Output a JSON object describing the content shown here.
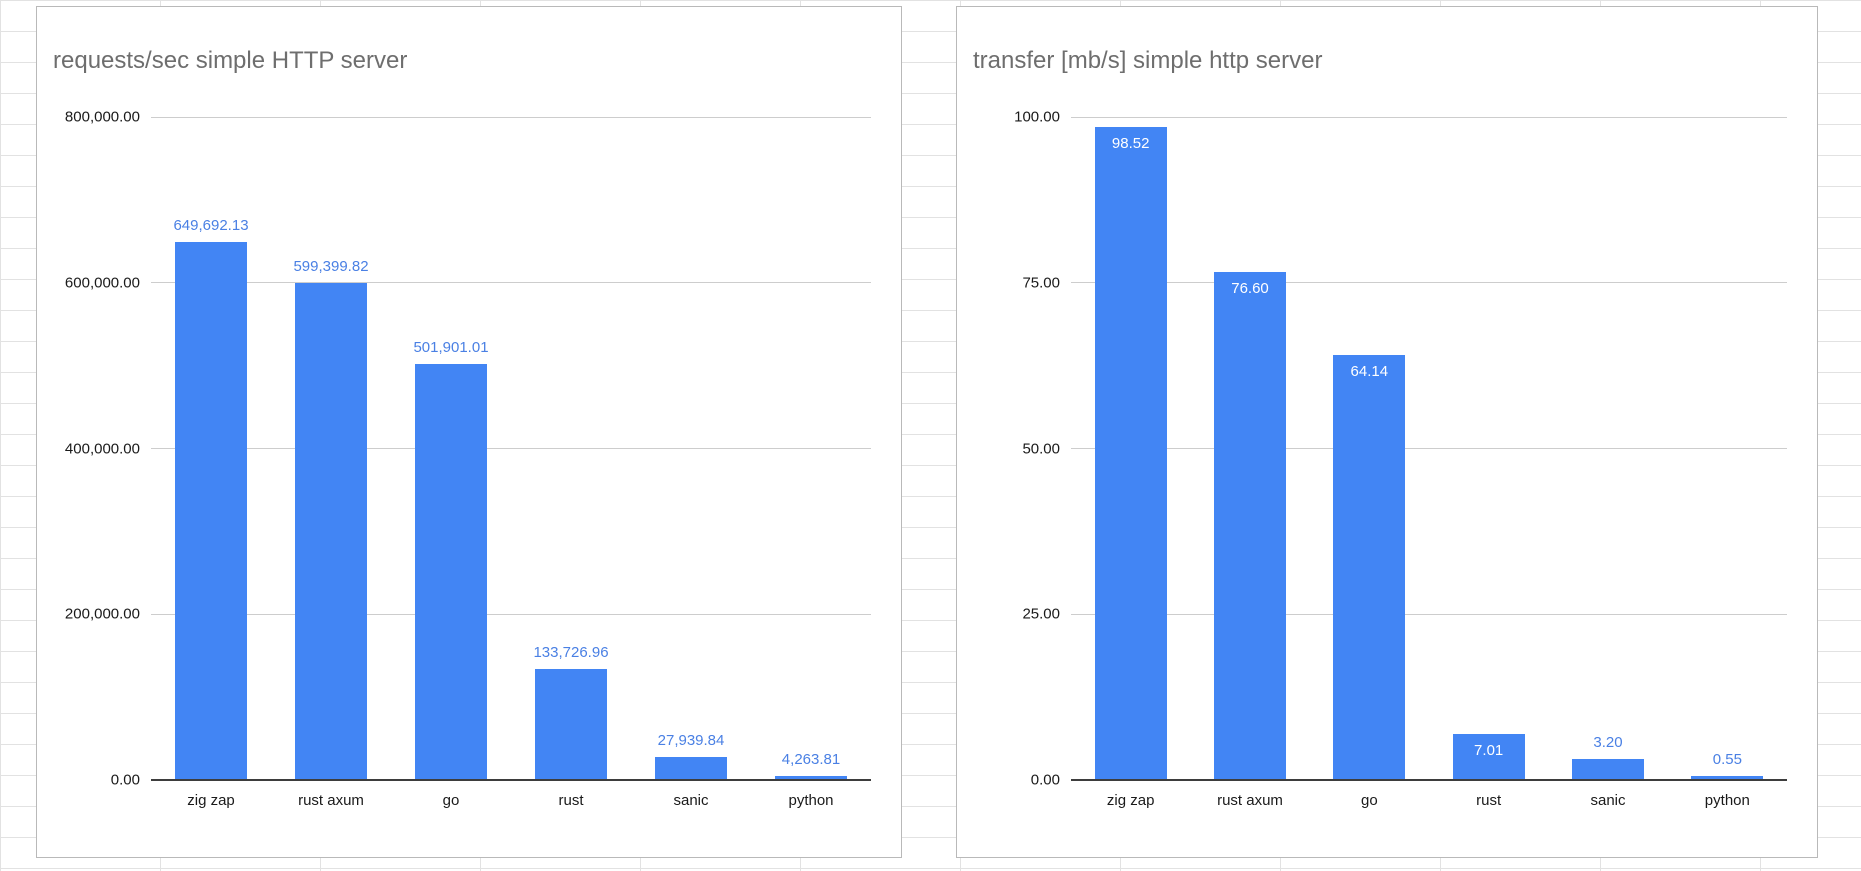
{
  "colors": {
    "bar": "#4285f4",
    "label_outside": "#4a80e4",
    "label_inside": "#ffffff",
    "gridline": "#cdcdcd",
    "axis": "#3d3d3d",
    "title": "#6e6e6e"
  },
  "chart_data": [
    {
      "type": "bar",
      "title": "requests/sec simple HTTP server",
      "categories": [
        "zig zap",
        "rust axum",
        "go",
        "rust",
        "sanic",
        "python"
      ],
      "values": [
        649692.13,
        599399.82,
        501901.01,
        133726.96,
        27939.84,
        4263.81
      ],
      "value_labels": [
        "649,692.13",
        "599,399.82",
        "501,901.01",
        "133,726.96",
        "27,939.84",
        "4,263.81"
      ],
      "xlabel": "",
      "ylabel": "",
      "ylim": [
        0,
        800000
      ],
      "yticks": [
        0,
        200000,
        400000,
        600000,
        800000
      ],
      "ytick_labels": [
        "0.00",
        "200,000.00",
        "400,000.00",
        "600,000.00",
        "800,000.00"
      ],
      "grid": true,
      "legend": "none"
    },
    {
      "type": "bar",
      "title": "transfer [mb/s] simple http server",
      "categories": [
        "zig zap",
        "rust axum",
        "go",
        "rust",
        "sanic",
        "python"
      ],
      "values": [
        98.52,
        76.6,
        64.14,
        7.01,
        3.2,
        0.55
      ],
      "value_labels": [
        "98.52",
        "76.60",
        "64.14",
        "7.01",
        "3.20",
        "0.55"
      ],
      "xlabel": "",
      "ylabel": "",
      "ylim": [
        0,
        100
      ],
      "yticks": [
        0,
        25,
        50,
        75,
        100
      ],
      "ytick_labels": [
        "0.00",
        "25.00",
        "50.00",
        "75.00",
        "100.00"
      ],
      "grid": true,
      "legend": "none"
    }
  ]
}
